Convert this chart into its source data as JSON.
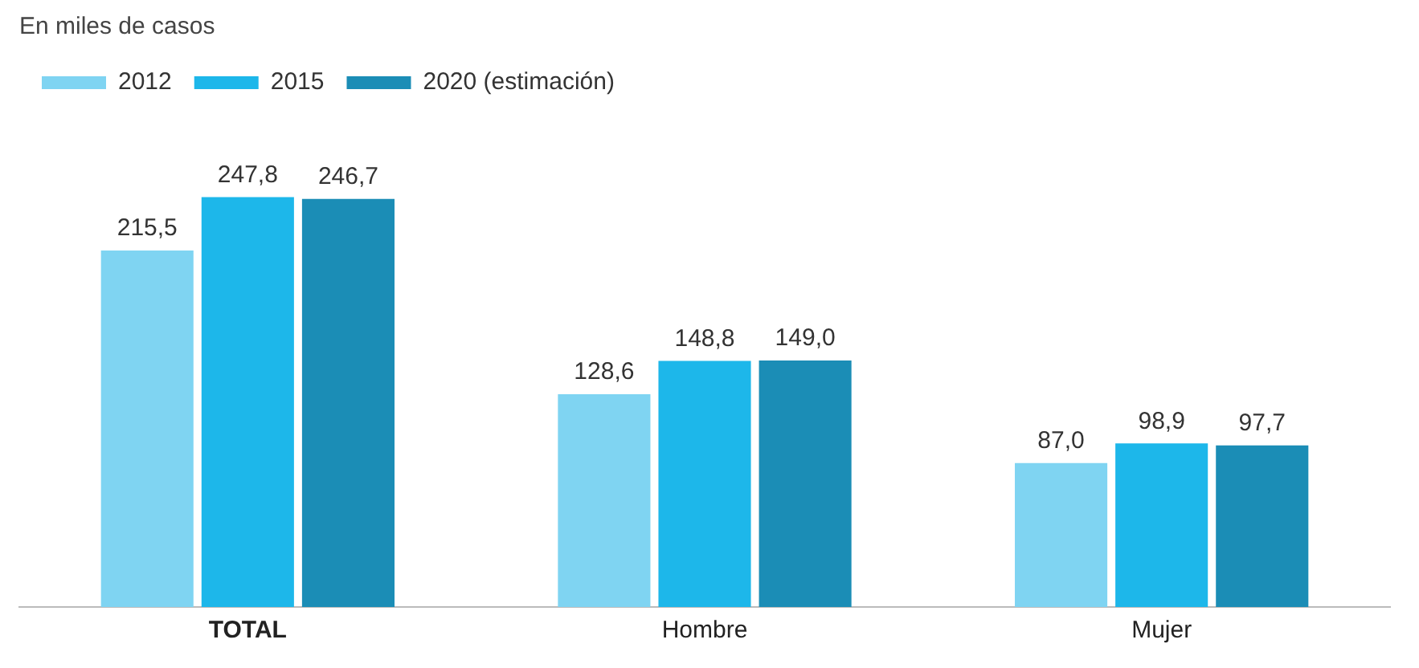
{
  "chart_data": {
    "type": "bar",
    "subtitle": "En miles de casos",
    "categories": [
      "TOTAL",
      "Hombre",
      "Mujer"
    ],
    "series": [
      {
        "name": "2012",
        "color": "#7fd4f2",
        "values": [
          215.5,
          128.6,
          87.0
        ],
        "value_labels": [
          "215,5",
          "128,6",
          "87,0"
        ]
      },
      {
        "name": "2015",
        "color": "#1db7ea",
        "values": [
          247.8,
          148.8,
          98.9
        ],
        "value_labels": [
          "247,8",
          "148,8",
          "98,9"
        ]
      },
      {
        "name": "2020 (estimación)",
        "color": "#1b8db6",
        "values": [
          246.7,
          149.0,
          97.7
        ],
        "value_labels": [
          "246,7",
          "149,0",
          "97,7"
        ]
      }
    ],
    "legend": "top left"
  }
}
